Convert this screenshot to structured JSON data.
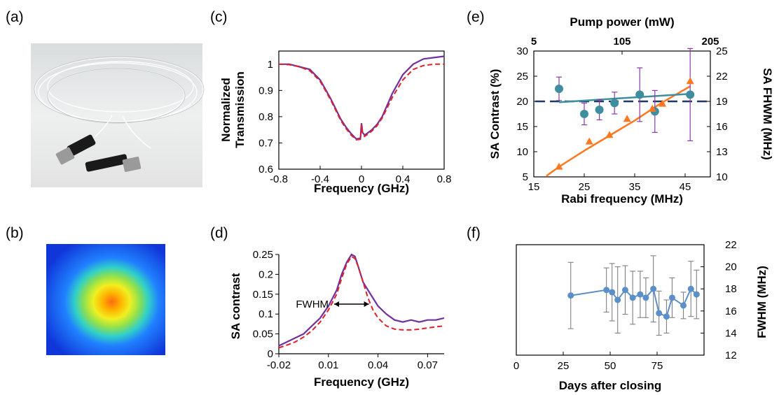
{
  "panel_labels": [
    "(a)",
    "(b)",
    "(c)",
    "(d)",
    "(e)",
    "(f)"
  ],
  "colors": {
    "purple": "#7030a0",
    "red_dash": "#e0202a",
    "orange": "#ff7820",
    "teal": "#3e8ea0",
    "navy": "#1f3864",
    "steel": "#5b8fc9",
    "errbar": "#808080"
  },
  "panel_a": {
    "image": "fiber-cable-photo",
    "connectors": "FC connectors"
  },
  "panel_b": {
    "image": "mode-profile-heatmap",
    "colormap": "jet"
  },
  "chart_data": [
    {
      "id": "c",
      "type": "line",
      "xlabel": "Frequency (GHz)",
      "ylabel": [
        "Normalized",
        "Transmission"
      ],
      "xlim": [
        -0.8,
        0.8
      ],
      "ylim": [
        0.6,
        1.05
      ],
      "xticks": [
        "-0.8",
        "-0.4",
        "0",
        "0.4",
        "0.8"
      ],
      "yticks": [
        "0.6",
        "0.7",
        "0.8",
        "0.9",
        "1"
      ],
      "series": [
        {
          "style": "solid-purple",
          "x": [
            -0.8,
            -0.7,
            -0.6,
            -0.5,
            -0.4,
            -0.3,
            -0.2,
            -0.15,
            -0.1,
            -0.05,
            -0.01,
            0.0,
            0.01,
            0.03,
            0.05,
            0.1,
            0.15,
            0.2,
            0.3,
            0.4,
            0.5,
            0.6,
            0.7,
            0.8
          ],
          "y": [
            1.0,
            1.0,
            0.99,
            0.98,
            0.94,
            0.87,
            0.79,
            0.76,
            0.735,
            0.715,
            0.718,
            0.775,
            0.74,
            0.73,
            0.735,
            0.75,
            0.77,
            0.8,
            0.89,
            0.96,
            1.0,
            1.02,
            1.025,
            1.03
          ]
        },
        {
          "style": "dashed-red",
          "x": [
            -0.8,
            -0.7,
            -0.6,
            -0.5,
            -0.4,
            -0.3,
            -0.2,
            -0.15,
            -0.1,
            -0.05,
            -0.01,
            0.0,
            0.01,
            0.03,
            0.05,
            0.1,
            0.15,
            0.2,
            0.3,
            0.4,
            0.5,
            0.6,
            0.7,
            0.8
          ],
          "y": [
            1.0,
            0.998,
            0.99,
            0.975,
            0.935,
            0.865,
            0.785,
            0.755,
            0.73,
            0.712,
            0.714,
            0.77,
            0.735,
            0.725,
            0.73,
            0.745,
            0.765,
            0.795,
            0.875,
            0.94,
            0.98,
            0.995,
            1.0,
            1.0
          ]
        }
      ]
    },
    {
      "id": "d",
      "type": "line",
      "xlabel": "Frequency (GHz)",
      "ylabel": "SA contrast",
      "xlim": [
        -0.02,
        0.08
      ],
      "ylim": [
        0,
        0.25
      ],
      "xticks": [
        "-0.02",
        "0.01",
        "0.04",
        "0.07"
      ],
      "yticks": [
        "0",
        "0.05",
        "0.1",
        "0.15",
        "0.2",
        "0.25"
      ],
      "annotation": "FWHM",
      "series": [
        {
          "style": "solid-purple",
          "x": [
            -0.02,
            -0.015,
            -0.01,
            -0.005,
            0.0,
            0.005,
            0.01,
            0.015,
            0.018,
            0.021,
            0.024,
            0.026,
            0.028,
            0.031,
            0.034,
            0.037,
            0.04,
            0.045,
            0.05,
            0.055,
            0.06,
            0.065,
            0.07,
            0.075,
            0.08
          ],
          "y": [
            0.02,
            0.03,
            0.04,
            0.05,
            0.07,
            0.09,
            0.12,
            0.16,
            0.2,
            0.23,
            0.25,
            0.245,
            0.22,
            0.18,
            0.16,
            0.14,
            0.12,
            0.1,
            0.085,
            0.08,
            0.085,
            0.08,
            0.085,
            0.085,
            0.09
          ]
        },
        {
          "style": "dashed-red",
          "x": [
            -0.02,
            -0.015,
            -0.01,
            -0.005,
            0.0,
            0.005,
            0.01,
            0.015,
            0.018,
            0.021,
            0.024,
            0.026,
            0.028,
            0.031,
            0.034,
            0.037,
            0.04,
            0.045,
            0.05,
            0.055,
            0.06,
            0.065,
            0.07,
            0.075,
            0.08
          ],
          "y": [
            0.015,
            0.022,
            0.03,
            0.042,
            0.058,
            0.08,
            0.11,
            0.15,
            0.19,
            0.225,
            0.245,
            0.24,
            0.22,
            0.18,
            0.14,
            0.11,
            0.09,
            0.07,
            0.062,
            0.06,
            0.06,
            0.062,
            0.065,
            0.068,
            0.07
          ]
        }
      ]
    },
    {
      "id": "e",
      "type": "scatter",
      "xlabel": "Rabi frequency (MHz)",
      "top_xlabel": "Pump power (mW)",
      "ylabel_left": "SA Contrast (%)",
      "ylabel_right": "SA FHWM (MHz)",
      "xlim": [
        15,
        50
      ],
      "ylim_left": [
        5,
        30
      ],
      "ylim_right": [
        10,
        25
      ],
      "xticks": [
        "15",
        "25",
        "35",
        "45"
      ],
      "top_xticks": [
        "5",
        "105",
        "205"
      ],
      "yticks_left": [
        "5",
        "10",
        "15",
        "20",
        "25",
        "30"
      ],
      "yticks_right": [
        "10",
        "13",
        "16",
        "19",
        "22",
        "25"
      ],
      "contrast_points": {
        "x": [
          20,
          26,
          30,
          33.5,
          38.5,
          40.5,
          46
        ],
        "y": [
          7,
          12,
          13.3,
          16.5,
          18.5,
          19.5,
          24
        ]
      },
      "contrast_fit": {
        "x": [
          17.5,
          20,
          25,
          30,
          35,
          40,
          46
        ],
        "y": [
          5.2,
          7,
          10.2,
          13.2,
          16.2,
          19.5,
          23
        ]
      },
      "fwhm_points": {
        "x": [
          20,
          25,
          28,
          31,
          36,
          39,
          46
        ],
        "y": [
          20.5,
          17.5,
          18,
          18.8,
          19.8,
          17.8,
          19.8
        ],
        "err": [
          1.4,
          1.3,
          1.2,
          1.3,
          3.2,
          2.5,
          5.5
        ]
      },
      "fwhm_fit": {
        "x": [
          20,
          46
        ],
        "y": [
          18.9,
          19.9
        ]
      },
      "dashed_ref": {
        "y": 19
      }
    },
    {
      "id": "f",
      "type": "scatter",
      "xlabel": "Days after closing",
      "ylabel_right": "FWHM (MHz)",
      "xlim": [
        0,
        100
      ],
      "ylim": [
        12,
        22
      ],
      "xticks": [
        "0",
        "25",
        "50",
        "75"
      ],
      "yticks_right": [
        "12",
        "14",
        "16",
        "18",
        "20",
        "22"
      ],
      "points": {
        "x": [
          29,
          48,
          51,
          54,
          58,
          62,
          66,
          69,
          73,
          76,
          80,
          83,
          89,
          93,
          96
        ],
        "y": [
          17.4,
          17.9,
          17.7,
          17.0,
          17.9,
          17.2,
          17.5,
          17.2,
          18.0,
          15.8,
          15.5,
          17.2,
          16.5,
          18.0,
          17.5
        ],
        "err": [
          3.0,
          2.0,
          2.6,
          3.0,
          2.2,
          2.4,
          2.1,
          1.8,
          3.0,
          2.0,
          1.5,
          1.8,
          1.2,
          2.5,
          2.2
        ]
      }
    }
  ]
}
